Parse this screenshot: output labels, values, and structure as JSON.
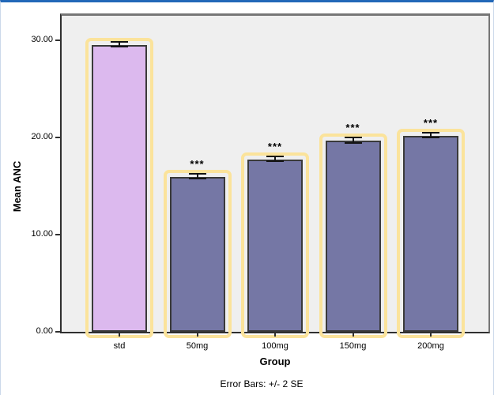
{
  "window": {
    "border_top_color": "#2268b8",
    "border_side_color": "#ccd9ea",
    "background": "#ffffff"
  },
  "chart_data": {
    "type": "bar",
    "title": "",
    "xlabel": "Group",
    "ylabel": "Mean ANC",
    "footnote": "Error Bars: +/- 2 SE",
    "categories": [
      "std",
      "50mg",
      "100mg",
      "150mg",
      "200mg"
    ],
    "values": [
      29.7,
      16.1,
      17.9,
      19.8,
      20.3
    ],
    "errors_2se": [
      0.25,
      0.25,
      0.25,
      0.25,
      0.25
    ],
    "significance": [
      "",
      "***",
      "***",
      "***",
      "***"
    ],
    "bar_colors": [
      "#dcb9ee",
      "#7577a5",
      "#7577a5",
      "#7577a5",
      "#7577a5"
    ],
    "bar_highlight_color": "#fbe39b",
    "bar_border_color": "#3a3a3a",
    "error_bar_color": "#141414",
    "plot_background": "#efefef",
    "ylim": [
      0,
      30
    ],
    "yticks": [
      {
        "value": 0,
        "label": "0.00"
      },
      {
        "value": 10,
        "label": "10.00"
      },
      {
        "value": 20,
        "label": "20.00"
      },
      {
        "value": 30,
        "label": "30.00"
      }
    ],
    "grid": false,
    "legend": "none"
  }
}
